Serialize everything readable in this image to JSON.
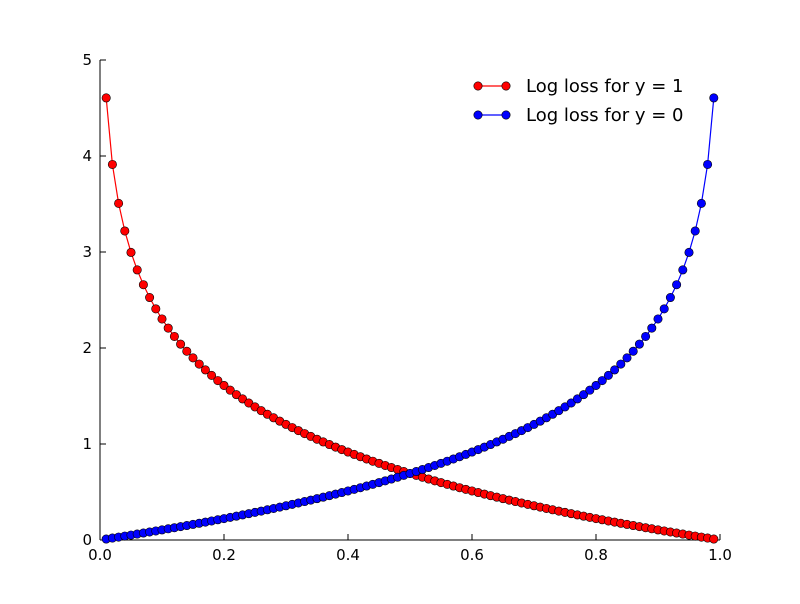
{
  "chart_data": {
    "type": "line",
    "title": "",
    "xlabel": "",
    "ylabel": "",
    "xlim": [
      0.0,
      1.0
    ],
    "ylim": [
      0,
      5
    ],
    "x_ticks": [
      "0.0",
      "0.2",
      "0.4",
      "0.6",
      "0.8",
      "1.0"
    ],
    "y_ticks": [
      "0",
      "1",
      "2",
      "3",
      "4",
      "5"
    ],
    "grid": false,
    "legend_position": "top-right",
    "x": {
      "start": 0.01,
      "stop": 0.99,
      "step": 0.01
    },
    "series": [
      {
        "name": "Log loss for y = 1",
        "formula": "-ln(x)",
        "color": "#ff0000",
        "marker": "circle"
      },
      {
        "name": "Log loss for y = 0",
        "formula": "-ln(1 - x)",
        "color": "#0000ff",
        "marker": "circle"
      }
    ]
  }
}
